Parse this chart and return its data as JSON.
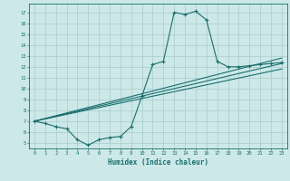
{
  "xlabel": "Humidex (Indice chaleur)",
  "ylabel": "",
  "background_color": "#cce8e8",
  "line_color": "#1a6e6e",
  "grid_color": "#aacccc",
  "xlim": [
    -0.5,
    23.5
  ],
  "ylim": [
    4.5,
    17.8
  ],
  "yticks": [
    5,
    6,
    7,
    8,
    9,
    10,
    11,
    12,
    13,
    14,
    15,
    16,
    17
  ],
  "xticks": [
    0,
    1,
    2,
    3,
    4,
    5,
    6,
    7,
    8,
    9,
    10,
    11,
    12,
    13,
    14,
    15,
    16,
    17,
    18,
    19,
    20,
    21,
    22,
    23
  ],
  "curve1_x": [
    0,
    1,
    2,
    3,
    4,
    5,
    6,
    7,
    8,
    9,
    10,
    11,
    12,
    13,
    14,
    15,
    16,
    17,
    18,
    19,
    20,
    21,
    22,
    23
  ],
  "curve1_y": [
    7.0,
    6.8,
    6.5,
    6.3,
    5.3,
    4.8,
    5.3,
    5.5,
    5.6,
    6.5,
    9.3,
    12.2,
    12.5,
    17.0,
    16.8,
    17.1,
    16.3,
    12.5,
    12.0,
    12.0,
    12.1,
    12.2,
    12.3,
    12.4
  ],
  "line1_x": [
    0,
    23
  ],
  "line1_y": [
    7.0,
    12.8
  ],
  "line2_x": [
    0,
    23
  ],
  "line2_y": [
    7.0,
    12.3
  ],
  "line3_x": [
    0,
    23
  ],
  "line3_y": [
    7.0,
    11.8
  ]
}
